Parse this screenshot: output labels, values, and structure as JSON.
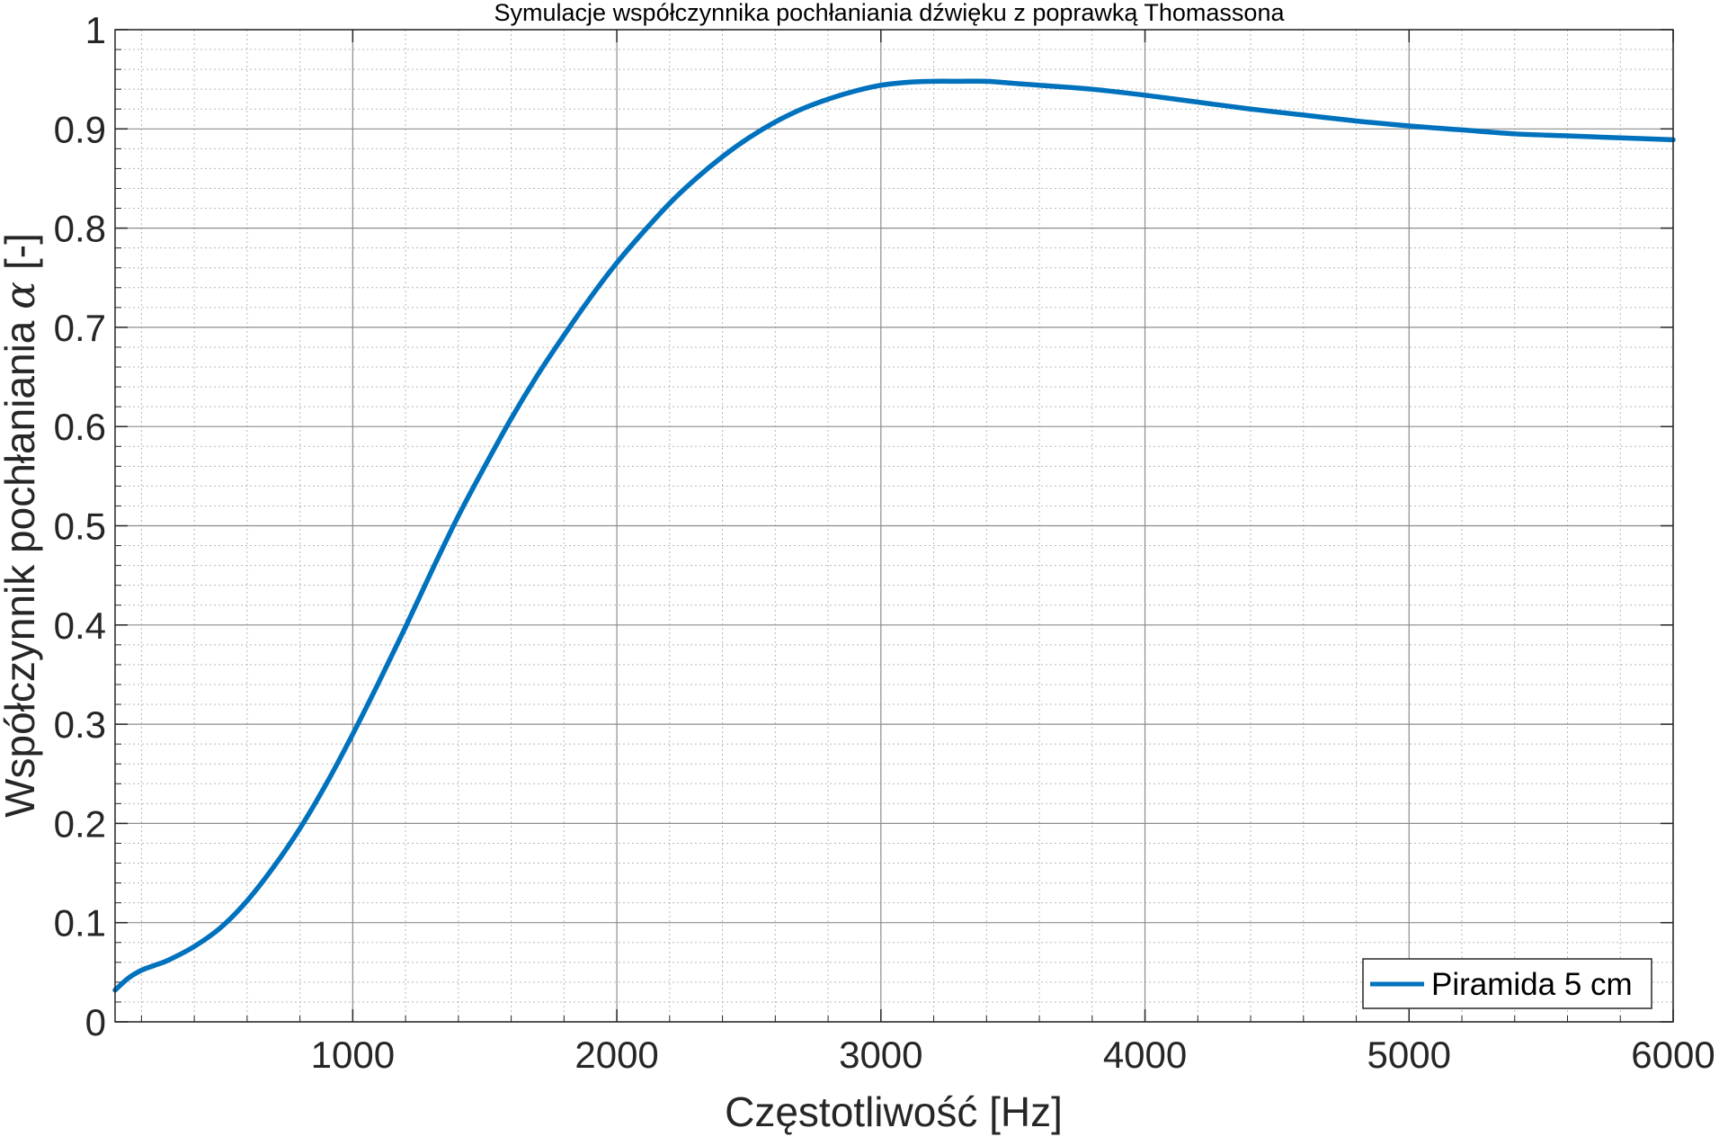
{
  "chart_data": {
    "type": "line",
    "title": "Symulacje współczynnika pochłaniania dźwięku z poprawką Thomassona",
    "xlabel": "Częstotliwość [Hz]",
    "ylabel_text": "Współczynnik pochłaniania",
    "ylabel_symbol": "α",
    "ylabel_unit": "[-]",
    "xlim": [
      100,
      6000
    ],
    "ylim": [
      0,
      1
    ],
    "xticks": [
      1000,
      2000,
      3000,
      4000,
      5000,
      6000
    ],
    "xtick_labels": [
      "1000",
      "2000",
      "3000",
      "4000",
      "5000",
      "6000"
    ],
    "yticks": [
      0,
      0.1,
      0.2,
      0.3,
      0.4,
      0.5,
      0.6,
      0.7,
      0.8,
      0.9,
      1
    ],
    "ytick_labels": [
      "0",
      "0.1",
      "0.2",
      "0.3",
      "0.4",
      "0.5",
      "0.6",
      "0.7",
      "0.8",
      "0.9",
      "1"
    ],
    "grid": true,
    "minor_grid": true,
    "legend_position": "bottom-right",
    "series": [
      {
        "name": "Piramida 5 cm",
        "color": "#0072BD",
        "x": [
          100,
          150,
          200,
          250,
          300,
          400,
          500,
          600,
          700,
          800,
          900,
          1000,
          1100,
          1200,
          1300,
          1400,
          1500,
          1600,
          1700,
          1800,
          1900,
          2000,
          2100,
          2200,
          2300,
          2400,
          2500,
          2600,
          2700,
          2800,
          2900,
          3000,
          3100,
          3200,
          3300,
          3400,
          3500,
          3600,
          3800,
          4000,
          4200,
          4400,
          4600,
          4800,
          5000,
          5200,
          5400,
          5600,
          5800,
          6000
        ],
        "y": [
          0.032,
          0.044,
          0.052,
          0.057,
          0.062,
          0.076,
          0.095,
          0.122,
          0.156,
          0.195,
          0.24,
          0.29,
          0.343,
          0.398,
          0.455,
          0.51,
          0.56,
          0.608,
          0.652,
          0.692,
          0.73,
          0.765,
          0.796,
          0.825,
          0.85,
          0.872,
          0.891,
          0.907,
          0.92,
          0.93,
          0.938,
          0.944,
          0.947,
          0.948,
          0.948,
          0.948,
          0.946,
          0.944,
          0.94,
          0.934,
          0.927,
          0.92,
          0.914,
          0.908,
          0.903,
          0.899,
          0.895,
          0.893,
          0.891,
          0.889
        ]
      }
    ]
  }
}
